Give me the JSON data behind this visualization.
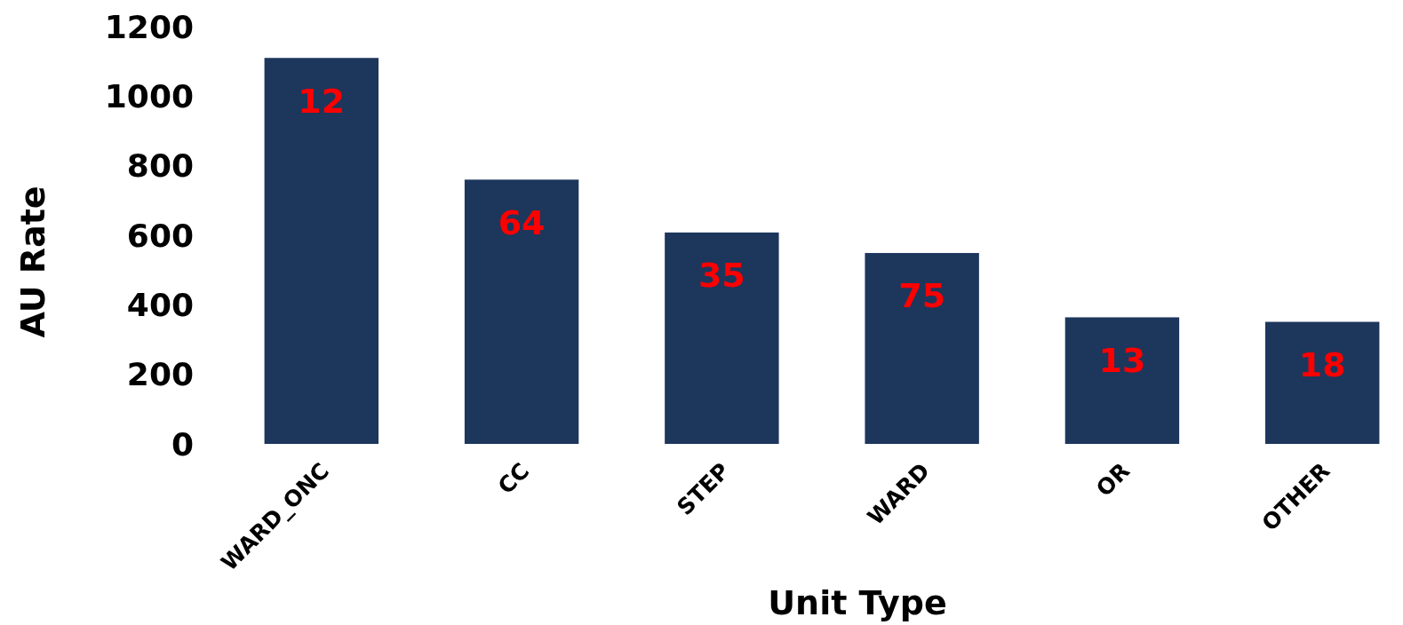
{
  "chart_data": {
    "type": "bar",
    "xlabel": "Unit  Type",
    "ylabel": "AU  Rate",
    "categories": [
      "WARD_ONC",
      "CC",
      "STEP",
      "WARD",
      "OR",
      "OTHER"
    ],
    "values": [
      1110,
      760,
      608,
      549,
      364,
      351
    ],
    "color": "#1d365c",
    "ylim": [
      0,
      1200
    ],
    "yticks": [
      0,
      200,
      400,
      600,
      800,
      1000,
      1200
    ],
    "grid": false,
    "annotations": [
      "12",
      "64",
      "35",
      "75",
      "13",
      "18"
    ]
  }
}
